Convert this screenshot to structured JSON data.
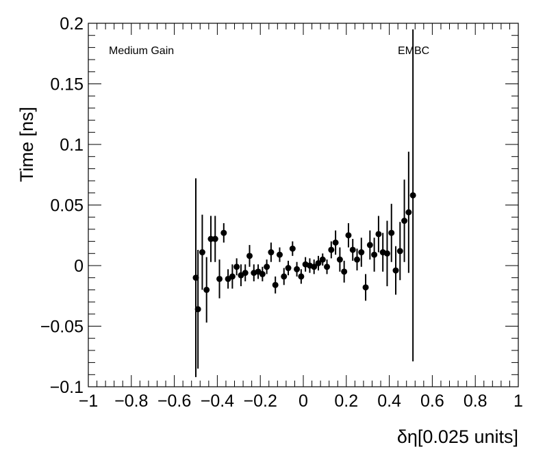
{
  "chart_data": {
    "type": "scatter",
    "title": "",
    "xlabel": "δη[0.025 units]",
    "ylabel": "Time [ns]",
    "xlim": [
      -1,
      1
    ],
    "ylim": [
      -0.1,
      0.2
    ],
    "x_tick_labels": [
      "−1",
      "−0.8",
      "−0.6",
      "−0.4",
      "−0.2",
      "0",
      "0.2",
      "0.4",
      "0.6",
      "0.8",
      "1"
    ],
    "y_tick_labels": [
      "−0.1",
      "−0.05",
      "0",
      "0.05",
      "0.1",
      "0.15",
      "0.2"
    ],
    "annotations": [
      "Medium Gain",
      "EMBC"
    ],
    "grid": false,
    "marker_color": "#000000",
    "series": [
      {
        "x": [
          -0.5,
          -0.49,
          -0.47,
          -0.45,
          -0.43,
          -0.41,
          -0.39,
          -0.37,
          -0.35,
          -0.33,
          -0.31,
          -0.29,
          -0.27,
          -0.25,
          -0.23,
          -0.21,
          -0.19,
          -0.17,
          -0.15,
          -0.13,
          -0.11,
          -0.09,
          -0.07,
          -0.05,
          -0.03,
          -0.01,
          0.01,
          0.03,
          0.05,
          0.07,
          0.09,
          0.11,
          0.13,
          0.15,
          0.17,
          0.19,
          0.21,
          0.23,
          0.25,
          0.27,
          0.29,
          0.31,
          0.33,
          0.35,
          0.37,
          0.39,
          0.41,
          0.43,
          0.45,
          0.47,
          0.49,
          0.51
        ],
        "y": [
          -0.01,
          -0.036,
          0.011,
          -0.02,
          0.022,
          0.022,
          -0.011,
          0.027,
          -0.011,
          -0.009,
          -0.001,
          -0.008,
          -0.006,
          0.008,
          -0.006,
          -0.005,
          -0.007,
          -0.001,
          0.011,
          -0.016,
          0.009,
          -0.009,
          -0.002,
          0.014,
          -0.003,
          -0.009,
          0.001,
          0.0,
          -0.001,
          0.002,
          0.005,
          -0.001,
          0.013,
          0.019,
          0.005,
          -0.005,
          0.025,
          0.013,
          0.005,
          0.011,
          -0.018,
          0.017,
          0.009,
          0.026,
          0.011,
          0.01,
          0.027,
          -0.004,
          0.012,
          0.037,
          0.044,
          0.058
        ],
        "yerr": [
          0.082,
          0.049,
          0.031,
          0.027,
          0.019,
          0.019,
          0.016,
          0.008,
          0.008,
          0.01,
          0.007,
          0.009,
          0.007,
          0.009,
          0.007,
          0.006,
          0.006,
          0.006,
          0.008,
          0.007,
          0.006,
          0.007,
          0.006,
          0.006,
          0.006,
          0.006,
          0.006,
          0.006,
          0.006,
          0.006,
          0.005,
          0.006,
          0.007,
          0.01,
          0.01,
          0.009,
          0.01,
          0.009,
          0.009,
          0.012,
          0.011,
          0.012,
          0.014,
          0.015,
          0.016,
          0.027,
          0.024,
          0.02,
          0.024,
          0.034,
          0.05,
          0.137
        ]
      }
    ]
  }
}
